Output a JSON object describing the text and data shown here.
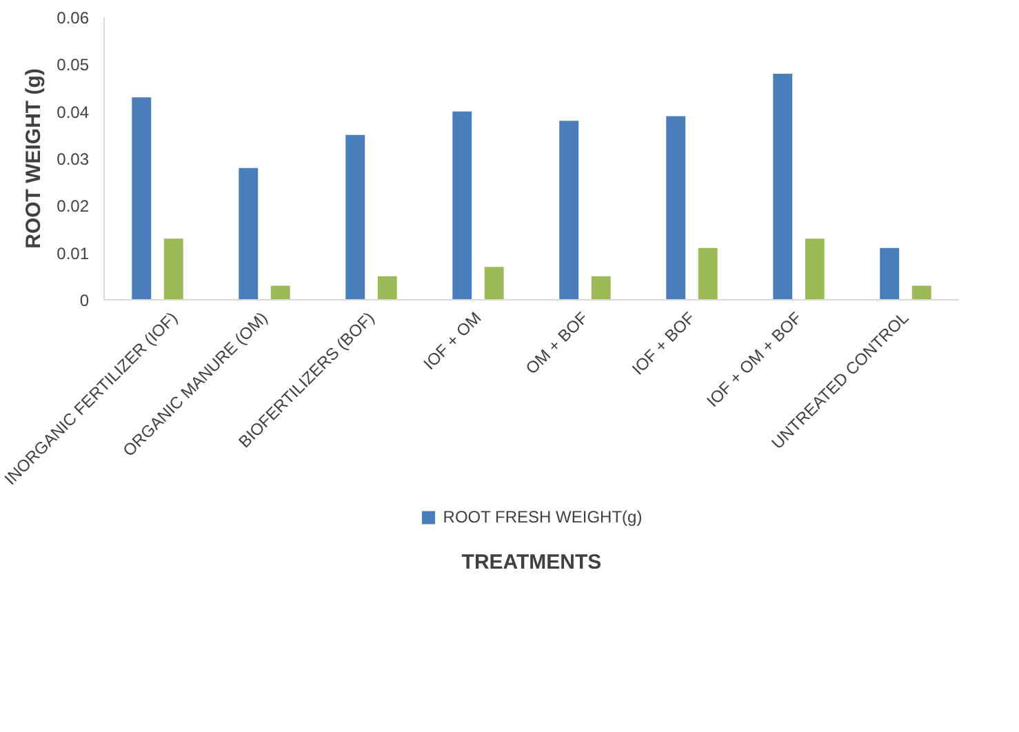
{
  "chart_data": {
    "type": "bar",
    "xlabel": "TREATMENTS",
    "ylabel": "ROOT WEIGHT (g)",
    "categories": [
      "INORGANIC FERTILIZER (IOF)",
      "ORGANIC MANURE (OM)",
      "BIOFERTILIZERS (BOF)",
      "IOF + OM",
      "OM + BOF",
      "IOF + BOF",
      "IOF + OM + BOF",
      "UNTREATED CONTROL"
    ],
    "series": [
      {
        "name": "ROOT FRESH WEIGHT(g)",
        "color": "#4a7ebb",
        "values": [
          0.043,
          0.028,
          0.035,
          0.04,
          0.038,
          0.039,
          0.048,
          0.011
        ]
      },
      {
        "color": "#9bbb59",
        "values": [
          0.013,
          0.003,
          0.005,
          0.007,
          0.005,
          0.011,
          0.013,
          0.003
        ]
      }
    ],
    "ylim": [
      0,
      0.06
    ],
    "yticks": [
      0,
      0.01,
      0.02,
      0.03,
      0.04,
      0.05,
      0.06
    ],
    "grid": false,
    "legend": "bottom"
  }
}
